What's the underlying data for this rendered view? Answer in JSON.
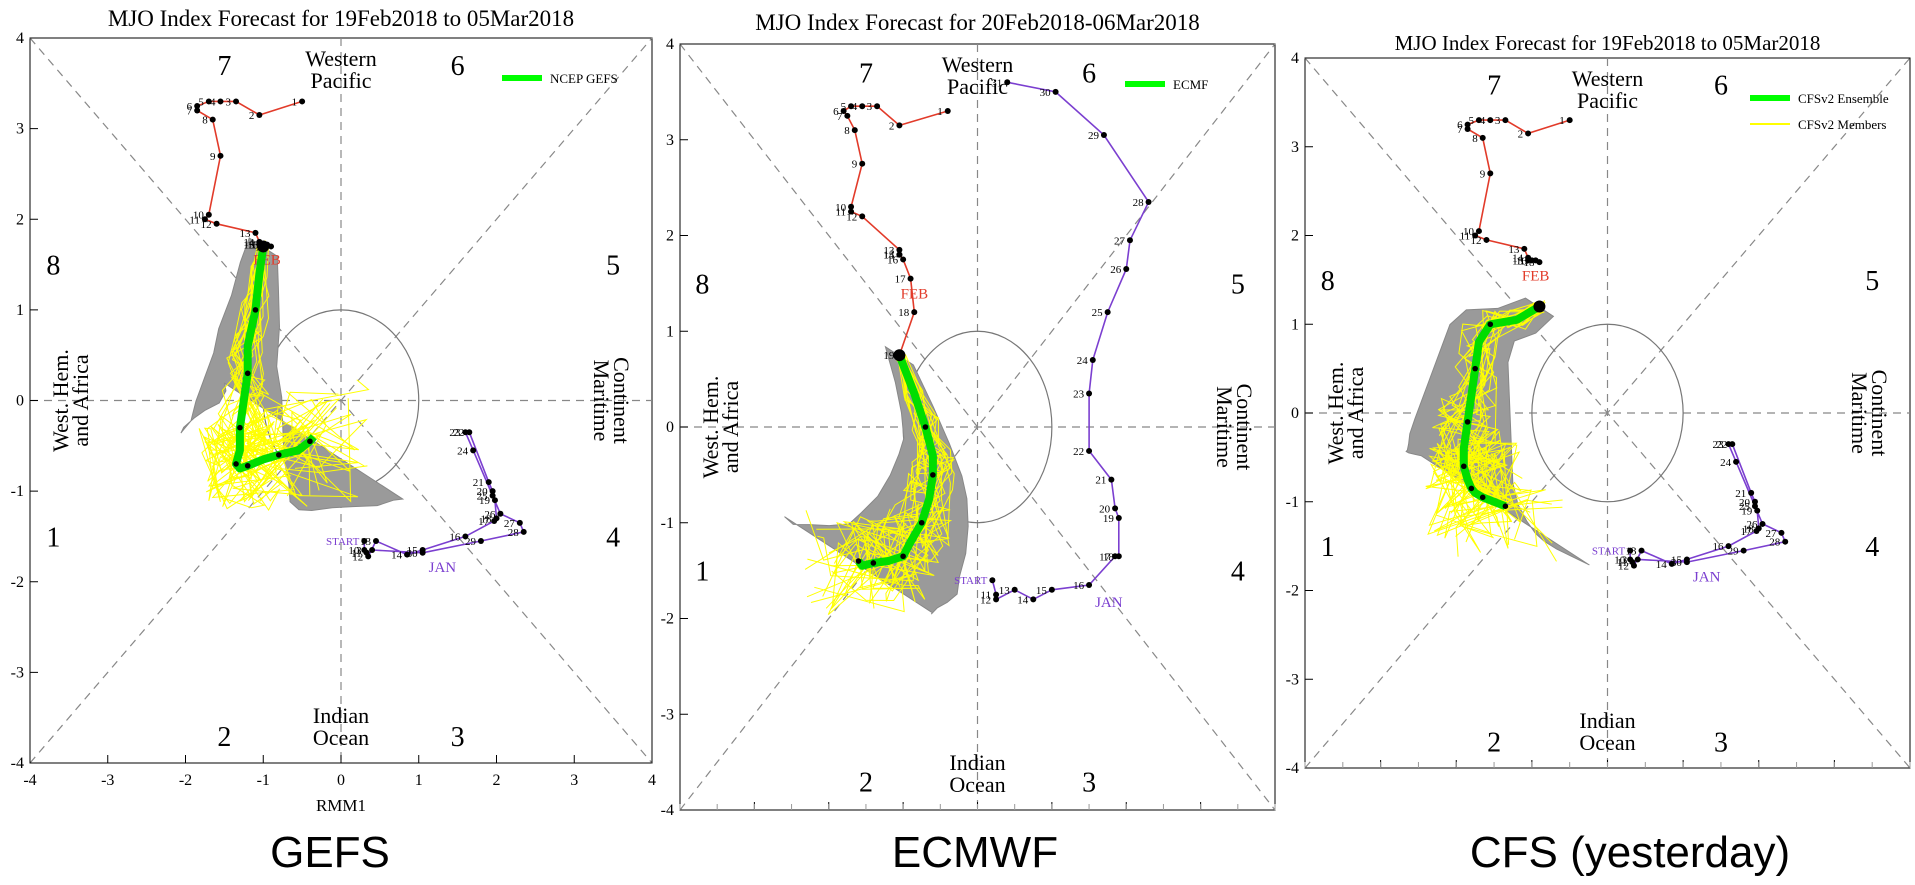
{
  "panels": [
    {
      "title": "MJO Index Forecast for 19Feb2018 to 05Mar2018",
      "legend": [
        {
          "label": "NCEP GEFS",
          "color": "#00ff00"
        }
      ],
      "xlabel": "RMM1",
      "caption": "GEFS",
      "ticks": [
        "-4",
        "-3",
        "-2",
        "-1",
        "0",
        "1",
        "2",
        "3",
        "4"
      ],
      "phase_labels": [
        "1",
        "2",
        "3",
        "4",
        "5",
        "6",
        "7",
        "8"
      ],
      "region_labels": {
        "top": [
          "Western",
          "Pacific"
        ],
        "bottom": [
          "Indian",
          "Ocean"
        ],
        "left": [
          "West. Hem.",
          "and Africa"
        ],
        "right": [
          "Maritime",
          "Continent"
        ]
      },
      "month_labels": [
        "JAN",
        "FEB",
        "START"
      ]
    },
    {
      "title": "MJO Index Forecast for 20Feb2018-06Mar2018",
      "legend": [
        {
          "label": "ECMF",
          "color": "#00ff00"
        }
      ],
      "xlabel": "",
      "caption": "ECMWF",
      "ticks": [
        "-4",
        "-3",
        "-2",
        "-1",
        "0",
        "1",
        "2",
        "3",
        "4"
      ],
      "phase_labels": [
        "1",
        "2",
        "3",
        "4",
        "5",
        "6",
        "7",
        "8"
      ],
      "region_labels": {
        "top": [
          "Western",
          "Pacific"
        ],
        "bottom": [
          "Indian",
          "Ocean"
        ],
        "left": [
          "West. Hem.",
          "and Africa"
        ],
        "right": [
          "Maritime",
          "Continent"
        ]
      },
      "month_labels": [
        "JAN",
        "FEB",
        "START"
      ]
    },
    {
      "title": "MJO Index Forecast for 19Feb2018 to 05Mar2018",
      "legend": [
        {
          "label": "CFSv2 Ensemble",
          "color": "#00ff00"
        },
        {
          "label": "CFSv2 Members",
          "color": "#ffff00"
        }
      ],
      "xlabel": "",
      "caption": "CFS (yesterday)",
      "ticks": [
        "-4",
        "-3",
        "-2",
        "-1",
        "0",
        "1",
        "2",
        "3",
        "4"
      ],
      "phase_labels": [
        "1",
        "2",
        "3",
        "4",
        "5",
        "6",
        "7",
        "8"
      ],
      "region_labels": {
        "top": [
          "Western",
          "Pacific"
        ],
        "bottom": [
          "Indian",
          "Ocean"
        ],
        "left": [
          "West. Hem.",
          "and Africa"
        ],
        "right": [
          "Maritime",
          "Continent"
        ]
      },
      "month_labels": [
        "JAN",
        "FEB",
        "START"
      ]
    }
  ],
  "chart_data": [
    {
      "type": "scatter",
      "title": "MJO Index Forecast for 19Feb2018 to 05Mar2018",
      "xlabel": "RMM1",
      "ylabel": "",
      "xlim": [
        -4,
        4
      ],
      "ylim": [
        -4,
        4
      ],
      "observed_january": {
        "days": [
          "START",
          "10",
          "11",
          "12",
          "13",
          "14",
          "15",
          "16",
          "17",
          "18",
          "19",
          "20",
          "21",
          "22",
          "23",
          "24",
          "25",
          "26",
          "27",
          "28",
          "29",
          "30",
          "31"
        ],
        "x": [
          0.3,
          0.3,
          0.33,
          0.35,
          0.45,
          0.85,
          1.05,
          1.6,
          1.97,
          2.0,
          1.98,
          1.95,
          1.9,
          1.65,
          1.6,
          1.7,
          1.95,
          2.05,
          2.3,
          2.35,
          1.8,
          1.05,
          0.4
        ],
        "y": [
          -1.55,
          -1.65,
          -1.68,
          -1.72,
          -1.55,
          -1.7,
          -1.65,
          -1.5,
          -1.33,
          -1.3,
          -1.1,
          -1.0,
          -0.9,
          -0.35,
          -0.35,
          -0.55,
          -1.05,
          -1.25,
          -1.35,
          -1.45,
          -1.55,
          -1.68,
          -1.65
        ],
        "color": "#7b3fd0"
      },
      "observed_february": {
        "days": [
          "1",
          "2",
          "3",
          "4",
          "5",
          "6",
          "7",
          "8",
          "9",
          "10",
          "11",
          "12",
          "13",
          "14",
          "15",
          "16",
          "17",
          "18"
        ],
        "x": [
          -0.5,
          -1.05,
          -1.35,
          -1.55,
          -1.7,
          -1.85,
          -1.85,
          -1.65,
          -1.55,
          -1.7,
          -1.75,
          -1.6,
          -1.1,
          -1.05,
          -1.05,
          -1.0,
          -0.95,
          -0.9
        ],
        "y": [
          3.3,
          3.15,
          3.3,
          3.3,
          3.3,
          3.25,
          3.2,
          3.1,
          2.7,
          2.05,
          2.0,
          1.95,
          1.85,
          1.75,
          1.72,
          1.72,
          1.72,
          1.7
        ],
        "color": "#e23b2a"
      },
      "ensemble_mean": {
        "name": "NCEP GEFS",
        "x": [
          -1.0,
          -1.05,
          -1.1,
          -1.2,
          -1.2,
          -1.25,
          -1.3,
          -1.3,
          -1.35,
          -1.3,
          -1.2,
          -1.0,
          -0.8,
          -0.55,
          -0.4,
          -0.35
        ],
        "y": [
          1.7,
          1.4,
          1.0,
          0.6,
          0.3,
          0.0,
          -0.3,
          -0.55,
          -0.7,
          -0.75,
          -0.72,
          -0.65,
          -0.6,
          -0.55,
          -0.45,
          -0.4
        ]
      },
      "phases": [
        "1",
        "2",
        "3",
        "4",
        "5",
        "6",
        "7",
        "8"
      ]
    },
    {
      "type": "scatter",
      "title": "MJO Index Forecast for 20Feb2018-06Mar2018",
      "xlabel": "",
      "ylabel": "",
      "xlim": [
        -4,
        4
      ],
      "ylim": [
        -4,
        4
      ],
      "observed_january": {
        "days": [
          "START",
          "11",
          "12",
          "13",
          "14",
          "15",
          "16",
          "17",
          "18",
          "19",
          "20",
          "21",
          "22",
          "23",
          "24",
          "25",
          "26",
          "27",
          "28",
          "29",
          "30",
          "31"
        ],
        "x": [
          0.2,
          0.25,
          0.25,
          0.5,
          0.75,
          1.0,
          1.5,
          1.85,
          1.9,
          1.9,
          1.85,
          1.8,
          1.5,
          1.5,
          1.55,
          1.75,
          2.0,
          2.05,
          2.3,
          1.7,
          1.05,
          0.4
        ],
        "y": [
          -1.6,
          -1.75,
          -1.8,
          -1.7,
          -1.8,
          -1.7,
          -1.65,
          -1.35,
          -1.35,
          -0.95,
          -0.85,
          -0.55,
          -0.25,
          0.35,
          0.7,
          1.2,
          1.65,
          1.95,
          2.35,
          3.05,
          3.5,
          3.6
        ],
        "color": "#7b3fd0"
      },
      "observed_february": {
        "days": [
          "1",
          "2",
          "3",
          "4",
          "5",
          "6",
          "7",
          "8",
          "9",
          "10",
          "11",
          "12",
          "13",
          "14",
          "15",
          "16",
          "17",
          "18",
          "19"
        ],
        "x": [
          -0.4,
          -1.05,
          -1.35,
          -1.55,
          -1.7,
          -1.8,
          -1.75,
          -1.65,
          -1.55,
          -1.7,
          -1.7,
          -1.55,
          -1.05,
          -1.05,
          -1.05,
          -1.0,
          -0.9,
          -0.85,
          -1.05
        ],
        "y": [
          3.3,
          3.15,
          3.35,
          3.35,
          3.35,
          3.3,
          3.25,
          3.1,
          2.75,
          2.3,
          2.25,
          2.2,
          1.85,
          1.8,
          1.8,
          1.75,
          1.55,
          1.2,
          0.75
        ],
        "color": "#e23b2a"
      },
      "ensemble_mean": {
        "name": "ECMF",
        "x": [
          -1.05,
          -0.85,
          -0.7,
          -0.6,
          -0.6,
          -0.65,
          -0.75,
          -0.9,
          -1.0,
          -1.2,
          -1.4,
          -1.55,
          -1.6
        ],
        "y": [
          0.75,
          0.35,
          0.0,
          -0.3,
          -0.5,
          -0.75,
          -1.0,
          -1.2,
          -1.35,
          -1.4,
          -1.42,
          -1.45,
          -1.4
        ]
      },
      "phases": [
        "1",
        "2",
        "3",
        "4",
        "5",
        "6",
        "7",
        "8"
      ]
    },
    {
      "type": "scatter",
      "title": "MJO Index Forecast for 19Feb2018 to 05Mar2018",
      "xlabel": "",
      "ylabel": "",
      "xlim": [
        -4,
        4
      ],
      "ylim": [
        -4,
        4
      ],
      "observed_january": {
        "days": [
          "START",
          "10",
          "11",
          "12",
          "13",
          "14",
          "15",
          "16",
          "17",
          "18",
          "19",
          "20",
          "21",
          "22",
          "23",
          "24",
          "25",
          "26",
          "27",
          "28",
          "29",
          "30",
          "31"
        ],
        "x": [
          0.3,
          0.3,
          0.33,
          0.35,
          0.45,
          0.85,
          1.05,
          1.6,
          1.97,
          2.0,
          1.98,
          1.95,
          1.9,
          1.65,
          1.6,
          1.7,
          1.95,
          2.05,
          2.3,
          2.35,
          1.8,
          1.05,
          0.4
        ],
        "y": [
          -1.55,
          -1.65,
          -1.68,
          -1.72,
          -1.55,
          -1.7,
          -1.65,
          -1.5,
          -1.33,
          -1.3,
          -1.1,
          -1.0,
          -0.9,
          -0.35,
          -0.35,
          -0.55,
          -1.05,
          -1.25,
          -1.35,
          -1.45,
          -1.55,
          -1.68,
          -1.65
        ],
        "color": "#7b3fd0"
      },
      "observed_february": {
        "days": [
          "1",
          "2",
          "3",
          "4",
          "5",
          "6",
          "7",
          "8",
          "9",
          "10",
          "11",
          "12",
          "13",
          "14",
          "15",
          "16",
          "17",
          "18"
        ],
        "x": [
          -0.5,
          -1.05,
          -1.35,
          -1.55,
          -1.7,
          -1.85,
          -1.85,
          -1.65,
          -1.55,
          -1.7,
          -1.75,
          -1.6,
          -1.1,
          -1.05,
          -1.05,
          -1.0,
          -0.95,
          -0.9
        ],
        "y": [
          3.3,
          3.15,
          3.3,
          3.3,
          3.3,
          3.25,
          3.2,
          3.1,
          2.7,
          2.05,
          2.0,
          1.95,
          1.85,
          1.75,
          1.72,
          1.72,
          1.72,
          1.7
        ],
        "color": "#e23b2a"
      },
      "ensemble_mean": {
        "name": "CFSv2 Ensemble",
        "x": [
          -0.9,
          -1.2,
          -1.55,
          -1.7,
          -1.75,
          -1.8,
          -1.85,
          -1.9,
          -1.9,
          -1.85,
          -1.8,
          -1.75,
          -1.65,
          -1.5,
          -1.35
        ],
        "y": [
          1.2,
          1.05,
          1.0,
          0.8,
          0.5,
          0.2,
          -0.1,
          -0.4,
          -0.6,
          -0.75,
          -0.85,
          -0.9,
          -0.95,
          -1.0,
          -1.05
        ]
      },
      "phases": [
        "1",
        "2",
        "3",
        "4",
        "5",
        "6",
        "7",
        "8"
      ]
    }
  ]
}
